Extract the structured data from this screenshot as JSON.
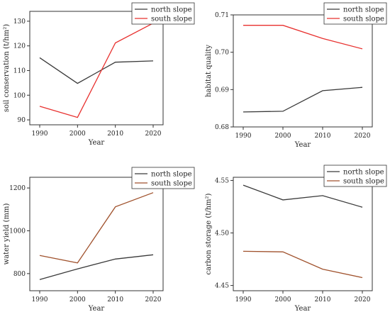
{
  "chart_data": [
    {
      "type": "line",
      "x": [
        1990,
        2000,
        2010,
        2020
      ],
      "xlabel": "Year",
      "ylabel": "soil conservation (t/hm²)",
      "ylim": [
        88,
        134
      ],
      "yticks": [
        90,
        100,
        110,
        120,
        130
      ],
      "legend_position": "top-right",
      "grid": false,
      "series": [
        {
          "name": "north slope",
          "color": "#3a3a3a",
          "values": [
            115.2,
            104.8,
            113.4,
            113.9
          ]
        },
        {
          "name": "south slope",
          "color": "#e8312f",
          "values": [
            95.5,
            91.0,
            121.2,
            129.2
          ]
        }
      ]
    },
    {
      "type": "line",
      "x": [
        1990,
        2000,
        2010,
        2020
      ],
      "xlabel": "Year",
      "ylabel": "habitat quality",
      "ylim": [
        0.68,
        0.71
      ],
      "yticks": [
        0.68,
        0.69,
        0.7,
        0.71
      ],
      "ytick_labels": [
        "0.68",
        "0.69",
        "0.70",
        "0.71"
      ],
      "legend_position": "top-right",
      "grid": false,
      "series": [
        {
          "name": "north slope",
          "color": "#3a3a3a",
          "values": [
            0.684,
            0.6842,
            0.6897,
            0.6906
          ]
        },
        {
          "name": "south slope",
          "color": "#e8312f",
          "values": [
            0.7072,
            0.7072,
            0.7037,
            0.7009
          ]
        }
      ]
    },
    {
      "type": "line",
      "x": [
        1990,
        2000,
        2010,
        2020
      ],
      "xlabel": "Year",
      "ylabel": "water yield (mm)",
      "ylim": [
        720,
        1250
      ],
      "yticks": [
        800,
        1000,
        1200
      ],
      "legend_position": "top-right",
      "grid": false,
      "series": [
        {
          "name": "north slope",
          "color": "#3a3a3a",
          "values": [
            772,
            822,
            868,
            888
          ]
        },
        {
          "name": "south slope",
          "color": "#a0522d",
          "values": [
            885,
            850,
            1112,
            1178
          ]
        }
      ]
    },
    {
      "type": "line",
      "x": [
        1990,
        2000,
        2010,
        2020
      ],
      "xlabel": "Year",
      "ylabel": "carbon storage (t/hm²)",
      "ylim": [
        4.445,
        4.553
      ],
      "yticks": [
        4.45,
        4.5,
        4.55
      ],
      "ytick_labels": [
        "4.45",
        "4.50",
        "4.55"
      ],
      "legend_position": "top-right",
      "grid": false,
      "series": [
        {
          "name": "north slope",
          "color": "#3a3a3a",
          "values": [
            4.5455,
            4.5315,
            4.5355,
            4.5245
          ]
        },
        {
          "name": "south slope",
          "color": "#a0522d",
          "values": [
            4.4825,
            4.482,
            4.4655,
            4.4575
          ]
        }
      ]
    }
  ]
}
